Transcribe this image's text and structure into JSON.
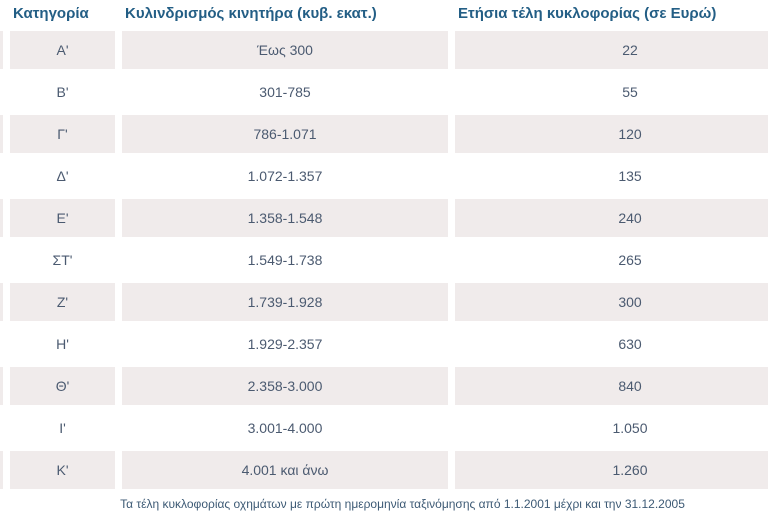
{
  "chart_data": {
    "type": "table",
    "title": "",
    "columns": [
      "Κατηγορία",
      "Κυλινδρισμός κινητήρα (κυβ. εκατ.)",
      "Ετήσια τέλη κυκλοφορίας (σε Ευρώ)"
    ],
    "rows": [
      [
        "Α'",
        "Έως 300",
        "22"
      ],
      [
        "Β'",
        "301-785",
        "55"
      ],
      [
        "Γ'",
        "786-1.071",
        "120"
      ],
      [
        "Δ'",
        "1.072-1.357",
        "135"
      ],
      [
        "Ε'",
        "1.358-1.548",
        "240"
      ],
      [
        "ΣΤ'",
        "1.549-1.738",
        "265"
      ],
      [
        "Ζ'",
        "1.739-1.928",
        "300"
      ],
      [
        "Η'",
        "1.929-2.357",
        "630"
      ],
      [
        "Θ'",
        "2.358-3.000",
        "840"
      ],
      [
        "Ι'",
        "3.001-4.000",
        "1.050"
      ],
      [
        "Κ'",
        "4.001 και άνω",
        "1.260"
      ]
    ],
    "footnote": "Τα τέλη κυκλοφορίας οχημάτων με πρώτη ημερομηνία ταξινόμησης από 1.1.2001 μέχρι και την 31.12.2005",
    "layout": {
      "zebra": "first data row shaded, then alternating",
      "grid_lines": "none, white gaps between cells",
      "third_column_clipped_at_right_edge": true
    }
  },
  "colors": {
    "row_shade": "#f0ebeb",
    "header_text": "#235e85",
    "body_text": "#4b5a70",
    "footnote_text": "#3d5a75",
    "page_background": "#ffffff"
  }
}
